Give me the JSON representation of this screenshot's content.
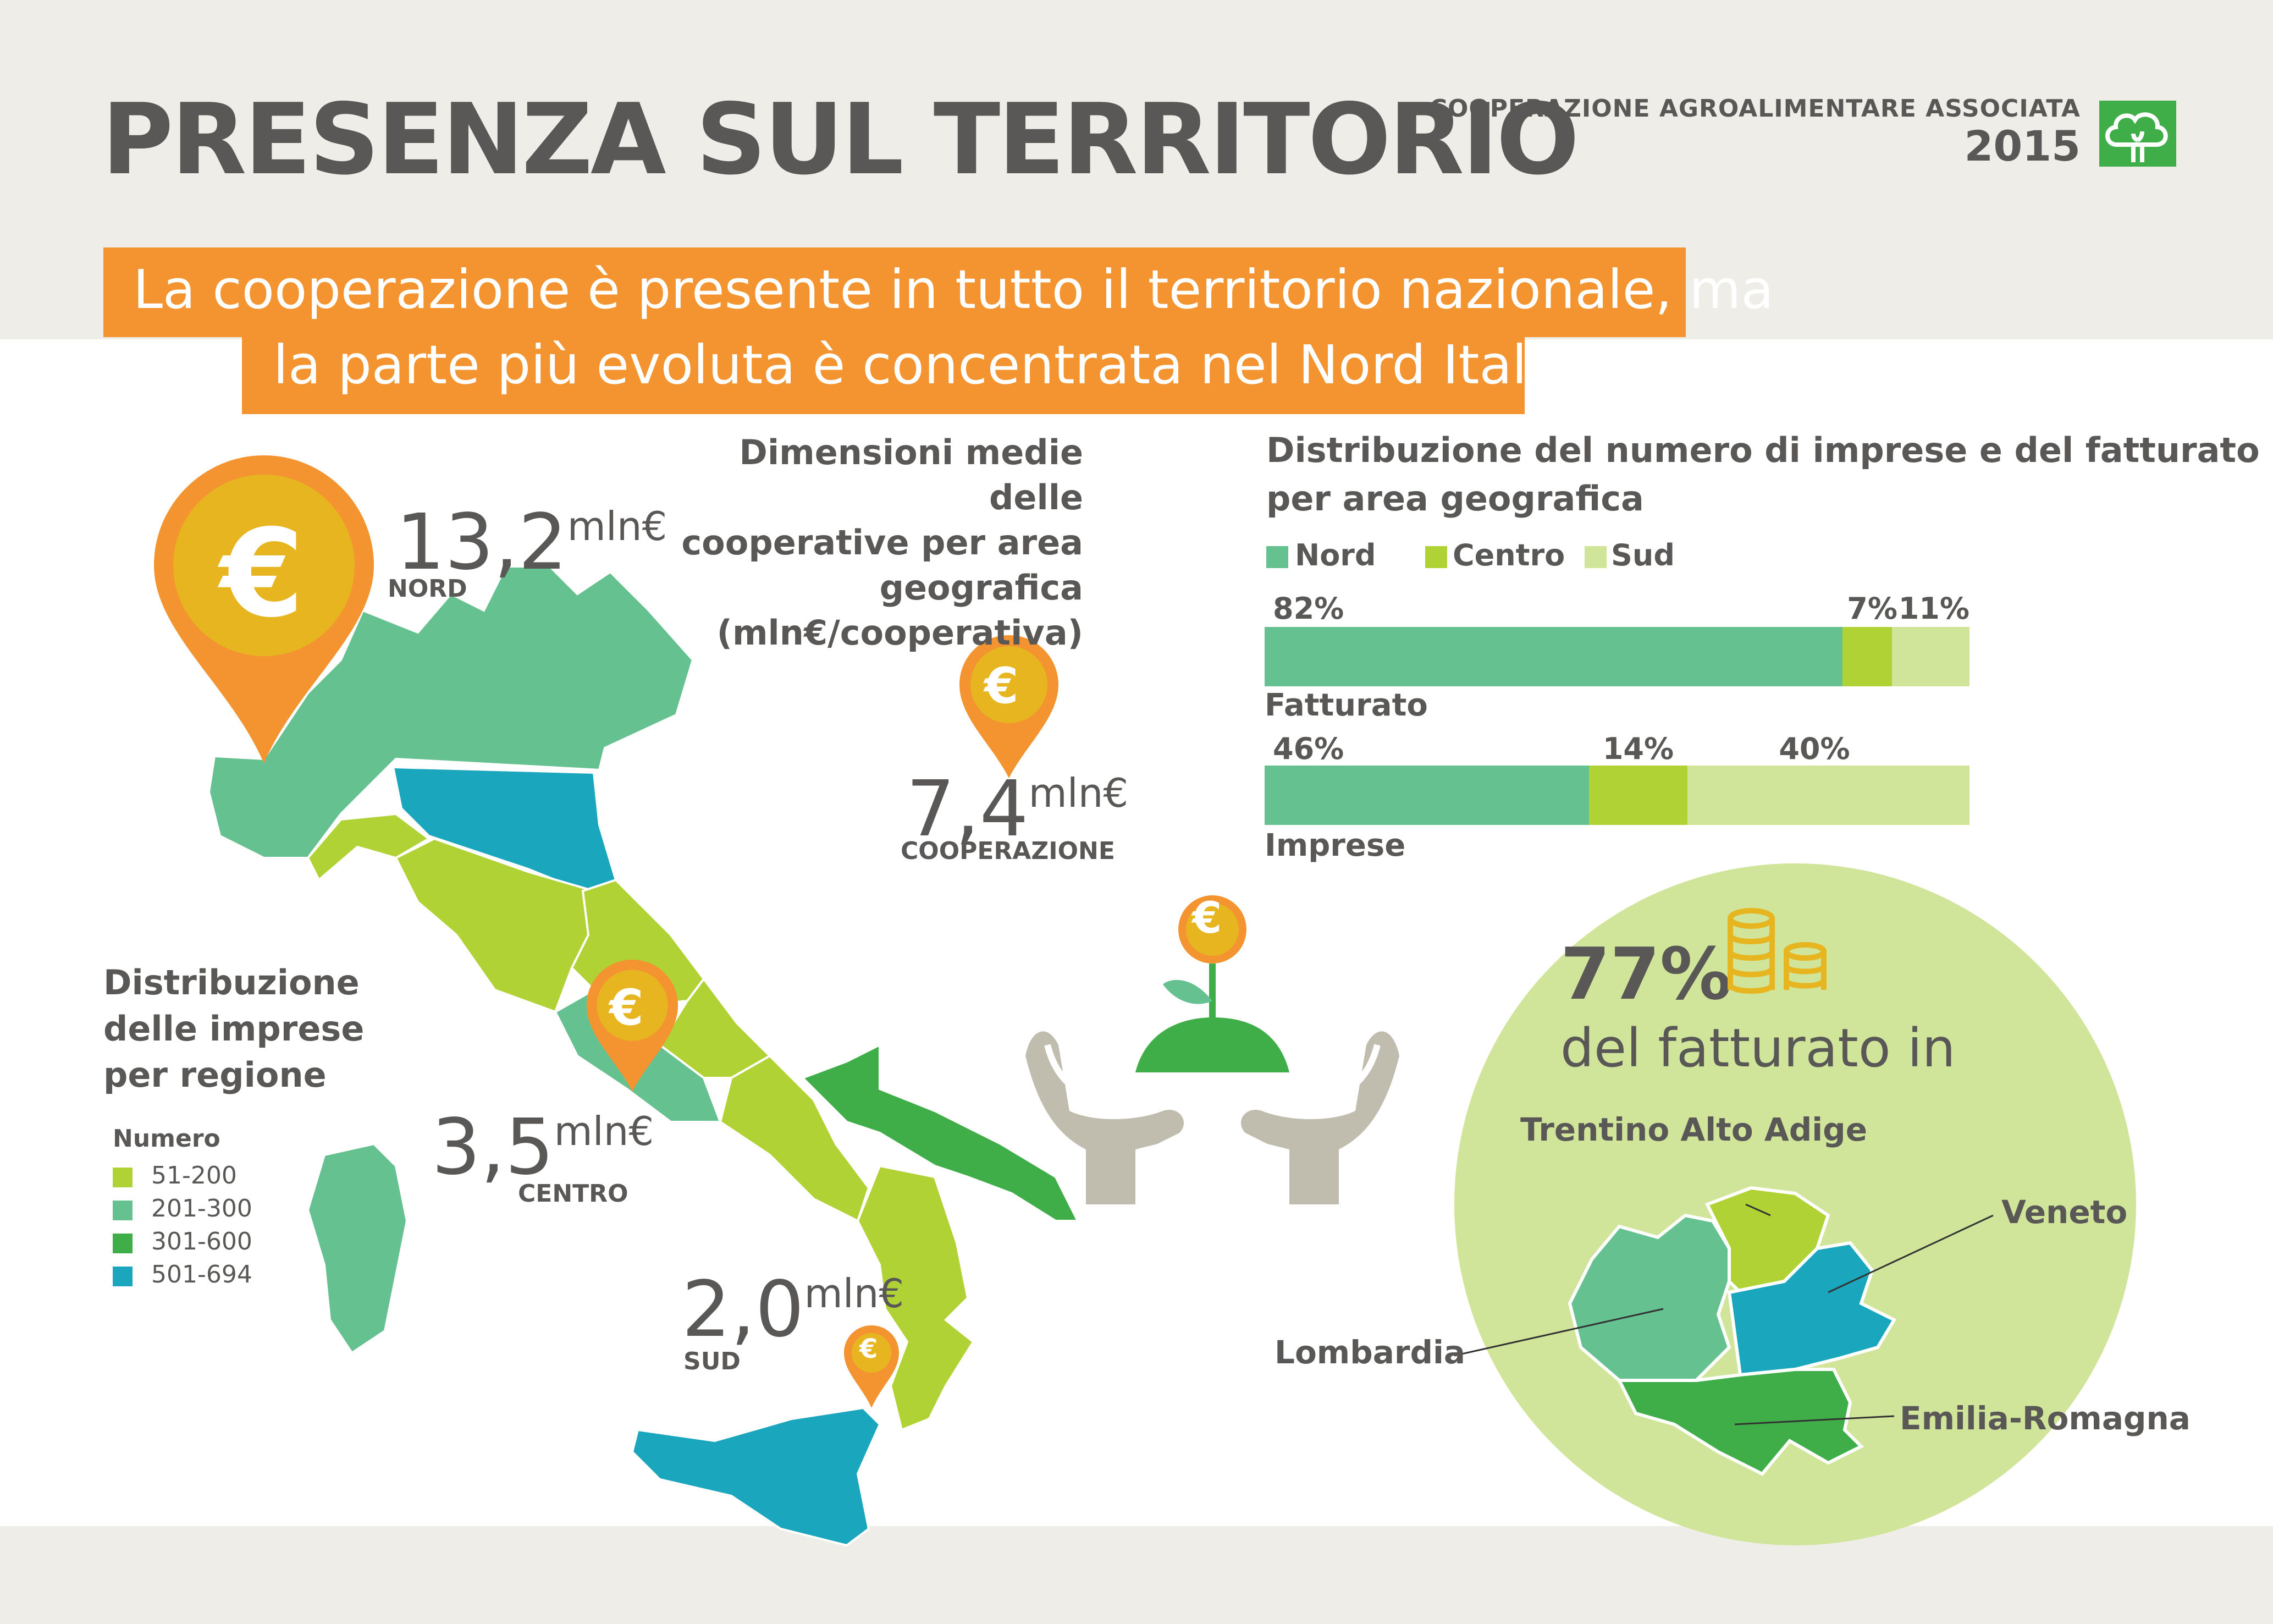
{
  "header": {
    "title": "PRESENZA SUL TERRITORIO",
    "org_name": "COOPERAZIONE AGROALIMENTARE ASSOCIATA",
    "year": "2015"
  },
  "headline": {
    "line1": "La cooperazione è presente in tutto il territorio nazionale, ma",
    "line2": "la parte più evoluta è concentrata nel Nord Italia"
  },
  "avg_size": {
    "title_lines": [
      "Dimensioni medie delle",
      "cooperative per area",
      "geografica",
      "(mln€/cooperativa)"
    ],
    "unit": "mln€",
    "euro_symbol": "€",
    "nord": {
      "value": "13,2",
      "label": "NORD"
    },
    "centro": {
      "value": "3,5",
      "label": "CENTRO"
    },
    "sud": {
      "value": "2,0",
      "label": "SUD"
    },
    "cooperazione": {
      "value": "7,4",
      "label": "COOPERAZIONE"
    }
  },
  "region_legend": {
    "title_lines": [
      "Distribuzione",
      "delle imprese",
      "per regione"
    ],
    "subtitle": "Numero",
    "items": [
      {
        "label": "51-200",
        "color": "#b1d235"
      },
      {
        "label": "201-300",
        "color": "#66c190"
      },
      {
        "label": "301-600",
        "color": "#3fae49"
      },
      {
        "label": "501-694",
        "color": "#1aa7be"
      }
    ]
  },
  "distribution": {
    "title_lines": [
      "Distribuzione del numero di imprese e del fatturato",
      "per area geografica"
    ],
    "legend": [
      {
        "label": "Nord",
        "color": "#66c190"
      },
      {
        "label": "Centro",
        "color": "#b1d235"
      },
      {
        "label": "Sud",
        "color": "#d0e59a"
      }
    ]
  },
  "chart_data": {
    "type": "bar",
    "orientation": "horizontal-stacked",
    "categories": [
      "Fatturato",
      "Imprese"
    ],
    "series": [
      {
        "name": "Nord",
        "values": [
          82,
          46
        ]
      },
      {
        "name": "Centro",
        "values": [
          7,
          14
        ]
      },
      {
        "name": "Sud",
        "values": [
          11,
          40
        ]
      }
    ],
    "labels": [
      [
        "82%",
        "7%",
        "11%"
      ],
      [
        "46%",
        "14%",
        "40%"
      ]
    ],
    "legend_position": "top-left",
    "grid": false
  },
  "circle": {
    "percent": "77%",
    "text": "del fatturato in",
    "regions": [
      "Trentino Alto Adige",
      "Veneto",
      "Lombardia",
      "Emilia-Romagna"
    ]
  }
}
